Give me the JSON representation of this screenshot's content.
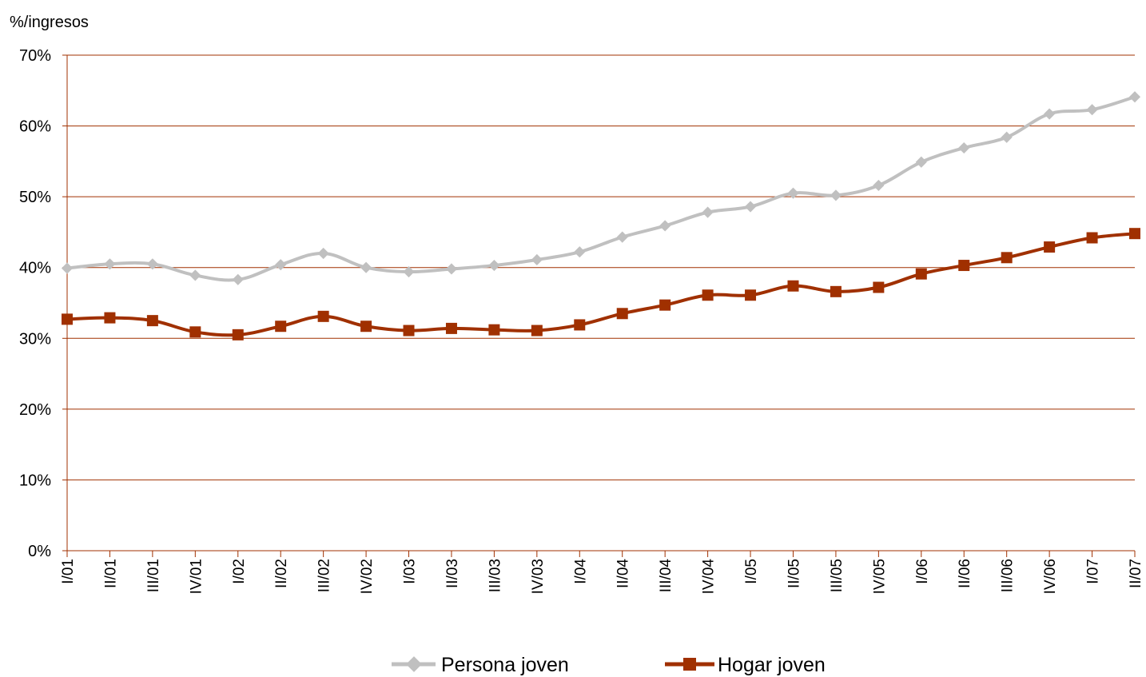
{
  "chart_data": {
    "type": "line",
    "ylabel": "%/ingresos",
    "ylim": [
      0,
      70
    ],
    "yticks": [
      0,
      10,
      20,
      30,
      40,
      50,
      60,
      70
    ],
    "ytick_labels": [
      "0%",
      "10%",
      "20%",
      "30%",
      "40%",
      "50%",
      "60%",
      "70%"
    ],
    "categories": [
      "I/01",
      "II/01",
      "III/01",
      "IV/01",
      "I/02",
      "II/02",
      "III/02",
      "IV/02",
      "I/03",
      "II/03",
      "III/03",
      "IV/03",
      "I/04",
      "II/04",
      "III/04",
      "IV/04",
      "I/05",
      "II/05",
      "III/05",
      "IV/05",
      "I/06",
      "II/06",
      "III/06",
      "IV/06",
      "I/07",
      "II/07"
    ],
    "grid": true,
    "legend_position": "bottom",
    "series": [
      {
        "name": "Persona joven",
        "color": "#c0c0c0",
        "marker": "diamond",
        "values": [
          39.9,
          40.5,
          40.5,
          38.9,
          38.3,
          40.4,
          42.0,
          40.0,
          39.4,
          39.8,
          40.3,
          41.1,
          42.2,
          44.3,
          45.9,
          47.8,
          48.6,
          50.5,
          50.2,
          51.6,
          54.9,
          56.9,
          58.4,
          61.7,
          62.3,
          64.1
        ]
      },
      {
        "name": "Hogar joven",
        "color": "#a03000",
        "marker": "square",
        "values": [
          32.7,
          32.9,
          32.5,
          30.9,
          30.5,
          31.7,
          33.1,
          31.7,
          31.1,
          31.4,
          31.2,
          31.1,
          31.9,
          33.5,
          34.7,
          36.1,
          36.1,
          37.4,
          36.6,
          37.2,
          39.1,
          40.3,
          41.4,
          42.9,
          44.2,
          44.8
        ]
      }
    ],
    "axis_color": "#a03000",
    "gridline_color": "#a03000"
  }
}
